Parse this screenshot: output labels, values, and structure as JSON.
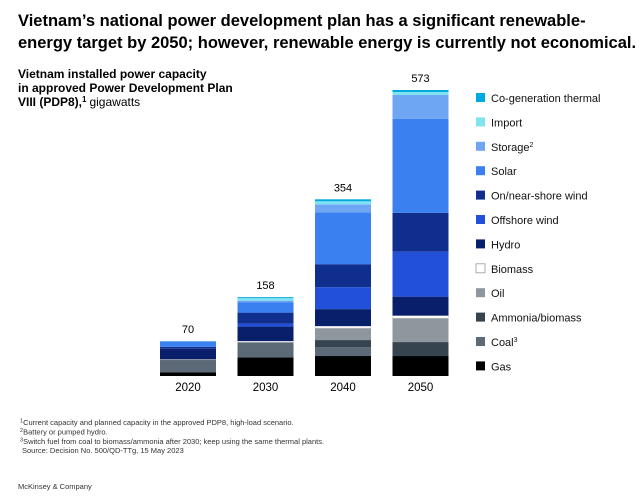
{
  "headline": [
    "Vietnam’s national power development plan has a significant renewable-",
    "energy target by 2050; however, renewable energy is currently not economical."
  ],
  "chart_data": {
    "type": "stacked_bar",
    "title": [
      "Vietnam installed power capacity",
      "in approved Power Development Plan",
      "VIII (PDP8),"
    ],
    "title_note": "1",
    "unit": "gigawatts",
    "categories": [
      "2020",
      "2030",
      "2040",
      "2050"
    ],
    "totals": [
      70,
      158,
      354,
      573
    ],
    "series": [
      {
        "name": "Gas",
        "color": "#000000",
        "values": [
          7,
          37,
          40,
          40
        ]
      },
      {
        "name": "Coal",
        "note": "3",
        "color": "#5b6a76",
        "values": [
          25,
          30,
          18,
          0
        ]
      },
      {
        "name": "Ammonia/biomass",
        "color": "#36444f",
        "values": [
          0,
          0,
          14,
          28
        ]
      },
      {
        "name": "Oil",
        "color": "#8e979e",
        "values": [
          1,
          1,
          24,
          48
        ]
      },
      {
        "name": "Biomass",
        "color": "#ffffff",
        "values": [
          0.5,
          2,
          4,
          5
        ]
      },
      {
        "name": "Hydro",
        "color": "#0a1f6b",
        "values": [
          21,
          29,
          34,
          38
        ]
      },
      {
        "name": "Offshore wind",
        "color": "#2350d8",
        "values": [
          0,
          6,
          44,
          90
        ]
      },
      {
        "name": "On/near-shore wind",
        "color": "#102e8e",
        "values": [
          4,
          22,
          46,
          78
        ]
      },
      {
        "name": "Solar",
        "color": "#3b80f0",
        "values": [
          11,
          21,
          104,
          188
        ]
      },
      {
        "name": "Storage",
        "note": "2",
        "color": "#6fa6f4",
        "values": [
          0,
          3,
          16,
          48
        ]
      },
      {
        "name": "Import",
        "color": "#80e4f0",
        "values": [
          0.5,
          5,
          6,
          6
        ]
      },
      {
        "name": "Co-generation thermal",
        "color": "#00a9e0",
        "values": [
          0,
          2,
          4,
          4
        ]
      }
    ]
  },
  "footnotes": [
    {
      "mark": "1",
      "text": "Current capacity and planned capacity in the approved PDP8, high-load scenario."
    },
    {
      "mark": "2",
      "text": "Battery or pumped hydro."
    },
    {
      "mark": "3",
      "text": "Switch fuel from coal to biomass/ammonia after 2030; keep using the same thermal plants."
    }
  ],
  "source": "Source: Decision No. 500/QD-TTg, 15 May 2023",
  "brand": "McKinsey & Company"
}
